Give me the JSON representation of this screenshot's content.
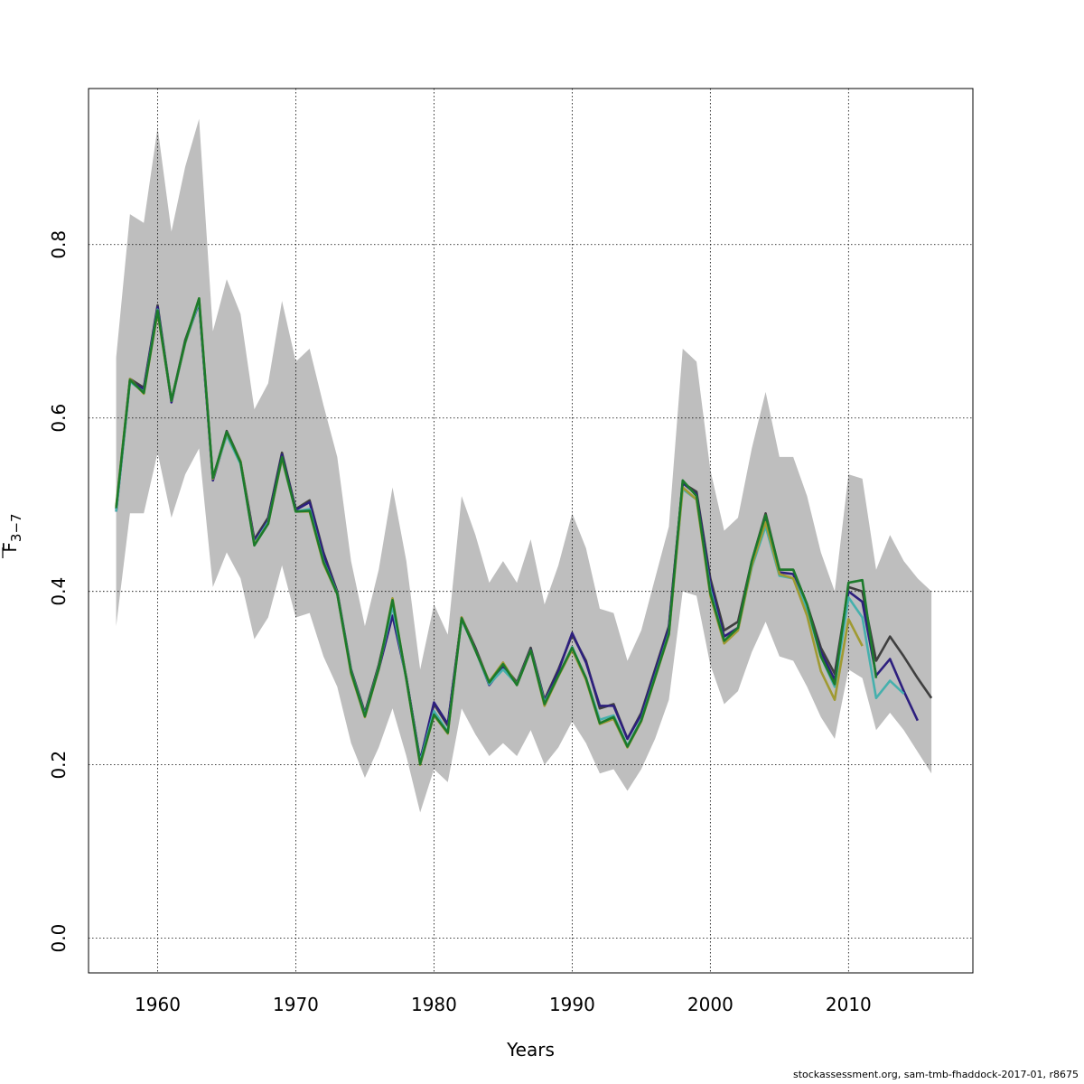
{
  "chart_data": {
    "type": "line",
    "xlabel": "Years",
    "ylabel_main": "F",
    "ylabel_sub": "3−7",
    "xlim": [
      1955,
      2019
    ],
    "ylim": [
      -0.04,
      0.98
    ],
    "xticks": [
      1960,
      1970,
      1980,
      1990,
      2000,
      2010
    ],
    "yticks": [
      0.0,
      0.2,
      0.4,
      0.6,
      0.8
    ],
    "ytick_labels": [
      "0.0",
      "0.2",
      "0.4",
      "0.6",
      "0.8"
    ],
    "grid": true,
    "band_color": "#bebebe",
    "confidence_band": {
      "years": [
        1957,
        1958,
        1959,
        1960,
        1961,
        1962,
        1963,
        1964,
        1965,
        1966,
        1967,
        1968,
        1969,
        1970,
        1971,
        1972,
        1973,
        1974,
        1975,
        1976,
        1977,
        1978,
        1979,
        1980,
        1981,
        1982,
        1983,
        1984,
        1985,
        1986,
        1987,
        1988,
        1989,
        1990,
        1991,
        1992,
        1993,
        1994,
        1995,
        1996,
        1997,
        1998,
        1999,
        2000,
        2001,
        2002,
        2003,
        2004,
        2005,
        2006,
        2007,
        2008,
        2009,
        2010,
        2011,
        2012,
        2013,
        2014,
        2015,
        2016
      ],
      "lower": [
        0.36,
        0.49,
        0.49,
        0.56,
        0.485,
        0.535,
        0.565,
        0.405,
        0.445,
        0.415,
        0.345,
        0.37,
        0.43,
        0.37,
        0.375,
        0.325,
        0.29,
        0.225,
        0.185,
        0.22,
        0.265,
        0.21,
        0.145,
        0.195,
        0.18,
        0.265,
        0.235,
        0.21,
        0.225,
        0.21,
        0.24,
        0.2,
        0.22,
        0.25,
        0.225,
        0.19,
        0.195,
        0.17,
        0.195,
        0.23,
        0.275,
        0.4,
        0.395,
        0.315,
        0.27,
        0.285,
        0.33,
        0.365,
        0.325,
        0.32,
        0.29,
        0.255,
        0.23,
        0.31,
        0.3,
        0.24,
        0.26,
        0.24,
        0.215,
        0.19
      ],
      "upper": [
        0.67,
        0.835,
        0.825,
        0.935,
        0.815,
        0.89,
        0.945,
        0.7,
        0.76,
        0.72,
        0.61,
        0.64,
        0.735,
        0.665,
        0.68,
        0.615,
        0.555,
        0.435,
        0.36,
        0.425,
        0.52,
        0.435,
        0.31,
        0.385,
        0.35,
        0.51,
        0.465,
        0.41,
        0.435,
        0.41,
        0.46,
        0.385,
        0.43,
        0.49,
        0.45,
        0.38,
        0.375,
        0.32,
        0.355,
        0.415,
        0.475,
        0.68,
        0.665,
        0.54,
        0.47,
        0.485,
        0.565,
        0.63,
        0.555,
        0.555,
        0.51,
        0.445,
        0.4,
        0.535,
        0.53,
        0.425,
        0.465,
        0.435,
        0.415,
        0.4
      ]
    },
    "series": [
      {
        "color": "#3f3f3f",
        "x": [
          1957,
          1958,
          1959,
          1960,
          1961,
          1962,
          1963,
          1964,
          1965,
          1966,
          1967,
          1968,
          1969,
          1970,
          1971,
          1972,
          1973,
          1974,
          1975,
          1976,
          1977,
          1978,
          1979,
          1980,
          1981,
          1982,
          1983,
          1984,
          1985,
          1986,
          1987,
          1988,
          1989,
          1990,
          1991,
          1992,
          1993,
          1994,
          1995,
          1996,
          1997,
          1998,
          1999,
          2000,
          2001,
          2002,
          2003,
          2004,
          2005,
          2006,
          2007,
          2008,
          2009,
          2010,
          2011,
          2012,
          2013,
          2014,
          2015,
          2016
        ],
        "y": [
          0.495,
          0.645,
          0.635,
          0.73,
          0.62,
          0.69,
          0.735,
          0.53,
          0.585,
          0.55,
          0.46,
          0.485,
          0.56,
          0.495,
          0.505,
          0.445,
          0.4,
          0.31,
          0.26,
          0.315,
          0.385,
          0.3,
          0.205,
          0.27,
          0.245,
          0.37,
          0.335,
          0.295,
          0.315,
          0.295,
          0.335,
          0.275,
          0.31,
          0.35,
          0.32,
          0.265,
          0.27,
          0.23,
          0.26,
          0.31,
          0.36,
          0.525,
          0.515,
          0.415,
          0.355,
          0.365,
          0.435,
          0.49,
          0.425,
          0.425,
          0.385,
          0.335,
          0.305,
          0.405,
          0.4,
          0.32,
          0.348,
          0.325,
          0.3,
          0.277
        ]
      },
      {
        "color": "#2d1f7e",
        "x": [
          1957,
          1958,
          1959,
          1960,
          1961,
          1962,
          1963,
          1964,
          1965,
          1966,
          1967,
          1968,
          1969,
          1970,
          1971,
          1972,
          1973,
          1974,
          1975,
          1976,
          1977,
          1978,
          1979,
          1980,
          1981,
          1982,
          1983,
          1984,
          1985,
          1986,
          1987,
          1988,
          1989,
          1990,
          1991,
          1992,
          1993,
          1994,
          1995,
          1996,
          1997,
          1998,
          1999,
          2000,
          2001,
          2002,
          2003,
          2004,
          2005,
          2006,
          2007,
          2008,
          2009,
          2010,
          2011,
          2012,
          2013,
          2014,
          2015
        ],
        "y": [
          0.492,
          0.643,
          0.633,
          0.728,
          0.618,
          0.688,
          0.733,
          0.528,
          0.582,
          0.548,
          0.458,
          0.482,
          0.558,
          0.494,
          0.503,
          0.443,
          0.398,
          0.308,
          0.258,
          0.31,
          0.372,
          0.3,
          0.205,
          0.272,
          0.247,
          0.368,
          0.333,
          0.292,
          0.312,
          0.293,
          0.333,
          0.273,
          0.308,
          0.352,
          0.318,
          0.268,
          0.268,
          0.23,
          0.258,
          0.308,
          0.358,
          0.525,
          0.512,
          0.41,
          0.348,
          0.358,
          0.432,
          0.485,
          0.422,
          0.42,
          0.38,
          0.33,
          0.298,
          0.4,
          0.388,
          0.303,
          0.322,
          0.285,
          0.251
        ]
      },
      {
        "color": "#46b0ad",
        "x": [
          1957,
          1958,
          1959,
          1960,
          1961,
          1962,
          1963,
          1964,
          1965,
          1966,
          1967,
          1968,
          1969,
          1970,
          1971,
          1972,
          1973,
          1974,
          1975,
          1976,
          1977,
          1978,
          1979,
          1980,
          1981,
          1982,
          1983,
          1984,
          1985,
          1986,
          1987,
          1988,
          1989,
          1990,
          1991,
          1992,
          1993,
          1994,
          1995,
          1996,
          1997,
          1998,
          1999,
          2000,
          2001,
          2002,
          2003,
          2004,
          2005,
          2006,
          2007,
          2008,
          2009,
          2010,
          2011,
          2012,
          2013,
          2014
        ],
        "y": [
          0.492,
          0.642,
          0.63,
          0.725,
          0.62,
          0.686,
          0.735,
          0.53,
          0.58,
          0.547,
          0.455,
          0.48,
          0.552,
          0.492,
          0.495,
          0.435,
          0.398,
          0.308,
          0.257,
          0.312,
          0.383,
          0.298,
          0.203,
          0.262,
          0.238,
          0.368,
          0.332,
          0.293,
          0.31,
          0.293,
          0.332,
          0.272,
          0.302,
          0.336,
          0.3,
          0.252,
          0.257,
          0.222,
          0.252,
          0.302,
          0.352,
          0.518,
          0.506,
          0.402,
          0.342,
          0.356,
          0.428,
          0.475,
          0.418,
          0.415,
          0.38,
          0.325,
          0.29,
          0.393,
          0.37,
          0.277,
          0.297,
          0.282
        ]
      },
      {
        "color": "#a09a32",
        "x": [
          1957,
          1958,
          1959,
          1960,
          1961,
          1962,
          1963,
          1964,
          1965,
          1966,
          1967,
          1968,
          1969,
          1970,
          1971,
          1972,
          1973,
          1974,
          1975,
          1976,
          1977,
          1978,
          1979,
          1980,
          1981,
          1982,
          1983,
          1984,
          1985,
          1986,
          1987,
          1988,
          1989,
          1990,
          1991,
          1992,
          1993,
          1994,
          1995,
          1996,
          1997,
          1998,
          1999,
          2000,
          2001,
          2002,
          2003,
          2004,
          2005,
          2006,
          2007,
          2008,
          2009,
          2010,
          2011
        ],
        "y": [
          0.498,
          0.645,
          0.628,
          0.722,
          0.62,
          0.687,
          0.738,
          0.53,
          0.583,
          0.55,
          0.454,
          0.478,
          0.553,
          0.492,
          0.492,
          0.432,
          0.397,
          0.305,
          0.255,
          0.31,
          0.392,
          0.298,
          0.2,
          0.257,
          0.236,
          0.37,
          0.332,
          0.296,
          0.318,
          0.292,
          0.332,
          0.268,
          0.302,
          0.333,
          0.298,
          0.247,
          0.253,
          0.22,
          0.25,
          0.3,
          0.35,
          0.52,
          0.506,
          0.395,
          0.34,
          0.355,
          0.43,
          0.48,
          0.42,
          0.415,
          0.372,
          0.308,
          0.275,
          0.368,
          0.337
        ]
      },
      {
        "color": "#1c7a2b",
        "x": [
          1957,
          1958,
          1959,
          1960,
          1961,
          1962,
          1963,
          1964,
          1965,
          1966,
          1967,
          1968,
          1969,
          1970,
          1971,
          1972,
          1973,
          1974,
          1975,
          1976,
          1977,
          1978,
          1979,
          1980,
          1981,
          1982,
          1983,
          1984,
          1985,
          1986,
          1987,
          1988,
          1989,
          1990,
          1991,
          1992,
          1993,
          1994,
          1995,
          1996,
          1997,
          1998,
          1999,
          2000,
          2001,
          2002,
          2003,
          2004,
          2005,
          2006,
          2007,
          2008,
          2009,
          2010,
          2011,
          2012
        ],
        "y": [
          0.496,
          0.644,
          0.629,
          0.724,
          0.62,
          0.688,
          0.738,
          0.531,
          0.584,
          0.549,
          0.453,
          0.478,
          0.555,
          0.492,
          0.493,
          0.434,
          0.397,
          0.307,
          0.256,
          0.311,
          0.39,
          0.299,
          0.201,
          0.258,
          0.237,
          0.369,
          0.332,
          0.295,
          0.316,
          0.292,
          0.332,
          0.27,
          0.303,
          0.335,
          0.3,
          0.248,
          0.255,
          0.221,
          0.251,
          0.301,
          0.351,
          0.528,
          0.51,
          0.398,
          0.343,
          0.358,
          0.435,
          0.488,
          0.425,
          0.425,
          0.385,
          0.325,
          0.293,
          0.41,
          0.413,
          0.3
        ]
      }
    ]
  },
  "footer": {
    "credit": "stockassessment.org, sam-tmb-fhaddock-2017-01, r8675"
  }
}
